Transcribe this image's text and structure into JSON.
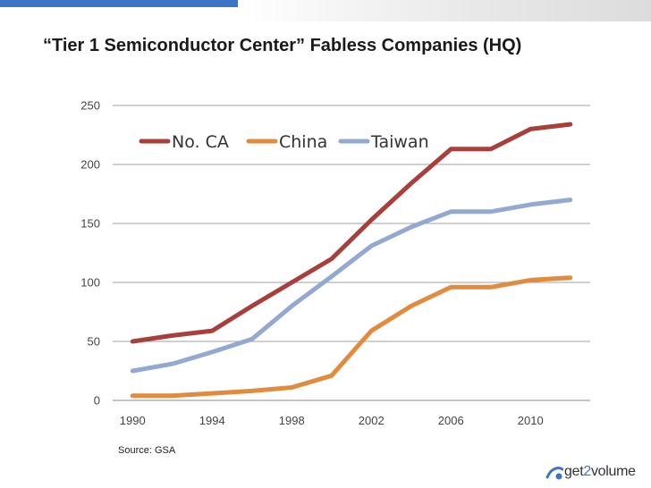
{
  "slide": {
    "title": "“Tier 1 Semiconductor Center” Fabless Companies (HQ)",
    "source": "Source: GSA",
    "logo_text_a": "get",
    "logo_text_b": "2",
    "logo_text_c": "volume"
  },
  "colors": {
    "no_ca": "#a83f3b",
    "china": "#e08b3d",
    "taiwan": "#93a9d1",
    "grid": "#a0a0a0",
    "logo_blue": "#3d74c6"
  },
  "chart_data": {
    "type": "line",
    "title": "",
    "xlabel": "",
    "ylabel": "",
    "x": [
      1990,
      1992,
      1994,
      1996,
      1998,
      2000,
      2002,
      2004,
      2006,
      2008,
      2010,
      2012
    ],
    "xticks": [
      1990,
      1994,
      1998,
      2002,
      2006,
      2010
    ],
    "xlim": [
      1989,
      2013
    ],
    "ylim": [
      0,
      250
    ],
    "yticks": [
      0,
      50,
      100,
      150,
      200,
      250
    ],
    "grid": true,
    "legend": "top-left",
    "series": [
      {
        "name": "No. CA",
        "color": "#a83f3b",
        "values": [
          50,
          55,
          59,
          80,
          100,
          120,
          153,
          184,
          213,
          213,
          230,
          234
        ]
      },
      {
        "name": "China",
        "color": "#e08b3d",
        "values": [
          4,
          4,
          6,
          8,
          11,
          21,
          59,
          80,
          96,
          96,
          102,
          104
        ]
      },
      {
        "name": "Taiwan",
        "color": "#93a9d1",
        "values": [
          25,
          31,
          41,
          52,
          80,
          105,
          131,
          147,
          160,
          160,
          166,
          170
        ]
      }
    ]
  }
}
